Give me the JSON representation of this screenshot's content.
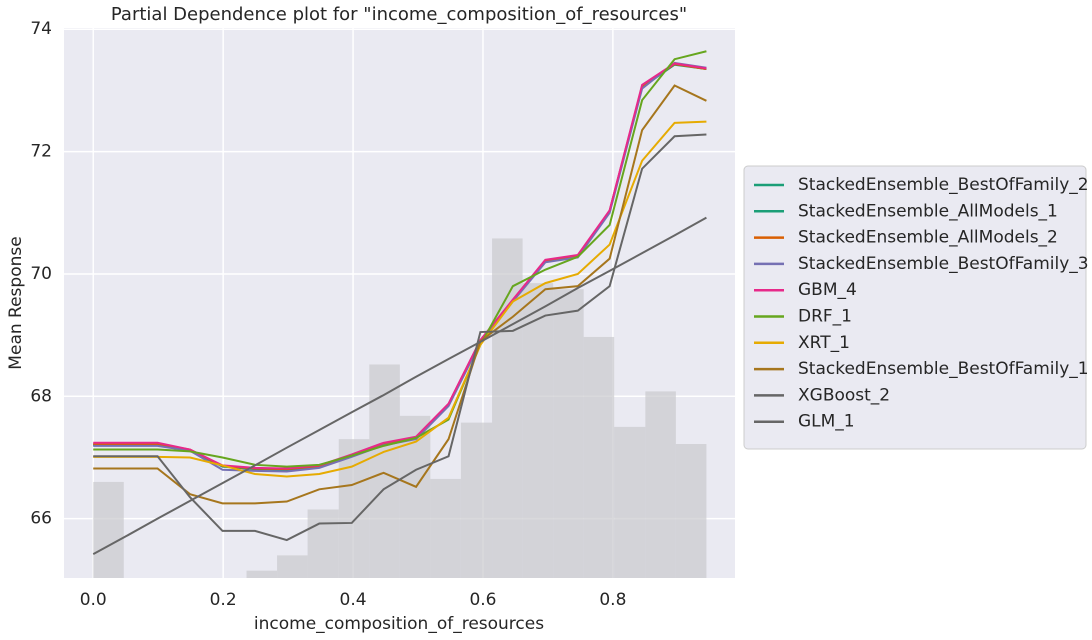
{
  "chart_data": {
    "type": "line",
    "title": "Partial Dependence plot for \"income_composition_of_resources\"",
    "x_label": "income_composition_of_resources",
    "y_label": "Mean Response",
    "x": [
      0,
      0.05,
      0.099,
      0.149,
      0.199,
      0.249,
      0.298,
      0.348,
      0.398,
      0.447,
      0.497,
      0.547,
      0.596,
      0.646,
      0.696,
      0.746,
      0.795,
      0.845,
      0.895,
      0.944
    ],
    "series": [
      {
        "name": "StackedEnsemble_BestOfFamily_2",
        "color": "#1b9e77",
        "values": [
          67.2,
          67.2,
          67.2,
          67.12,
          66.85,
          66.81,
          66.8,
          66.85,
          67.03,
          67.22,
          67.32,
          67.86,
          68.9,
          69.56,
          70.2,
          70.28,
          71.02,
          73.05,
          73.42,
          73.35
        ]
      },
      {
        "name": "StackedEnsemble_AllModels_1",
        "color": "#1b9e77",
        "values": [
          67.21,
          67.21,
          67.21,
          67.12,
          66.86,
          66.82,
          66.81,
          66.86,
          67.04,
          67.23,
          67.33,
          67.87,
          68.91,
          69.57,
          70.21,
          70.29,
          71.03,
          73.06,
          73.43,
          73.35
        ]
      },
      {
        "name": "StackedEnsemble_AllModels_2",
        "color": "#d95f02",
        "values": [
          67.22,
          67.22,
          67.22,
          67.13,
          66.86,
          66.82,
          66.81,
          66.86,
          67.04,
          67.23,
          67.33,
          67.87,
          68.91,
          69.57,
          70.22,
          70.3,
          71.03,
          73.07,
          73.43,
          73.35
        ]
      },
      {
        "name": "StackedEnsemble_BestOfFamily_3",
        "color": "#7570b3",
        "values": [
          67.19,
          67.19,
          67.19,
          67.11,
          66.8,
          66.78,
          66.77,
          66.83,
          67.01,
          67.2,
          67.3,
          67.84,
          68.88,
          69.55,
          70.19,
          70.27,
          71.0,
          73.03,
          73.45,
          73.37
        ]
      },
      {
        "name": "GBM_4",
        "color": "#e7298a",
        "values": [
          67.24,
          67.24,
          67.24,
          67.13,
          66.87,
          66.83,
          66.82,
          66.87,
          67.05,
          67.24,
          67.34,
          67.88,
          68.92,
          69.58,
          70.23,
          70.31,
          71.04,
          73.09,
          73.44,
          73.36
        ]
      },
      {
        "name": "DRF_1",
        "color": "#66a61e",
        "values": [
          67.13,
          67.13,
          67.13,
          67.1,
          67.0,
          66.88,
          66.85,
          66.88,
          67.03,
          67.19,
          67.32,
          67.62,
          68.84,
          69.8,
          70.07,
          70.28,
          70.8,
          72.84,
          73.51,
          73.64
        ]
      },
      {
        "name": "XRT_1",
        "color": "#e6ab02",
        "values": [
          67.01,
          67.01,
          67.01,
          67.0,
          66.87,
          66.73,
          66.69,
          66.73,
          66.85,
          67.09,
          67.26,
          67.65,
          68.84,
          69.55,
          69.85,
          70.0,
          70.48,
          71.85,
          72.47,
          72.49
        ]
      },
      {
        "name": "StackedEnsemble_BestOfFamily_1",
        "color": "#a6761d",
        "values": [
          66.82,
          66.82,
          66.82,
          66.4,
          66.25,
          66.25,
          66.28,
          66.48,
          66.55,
          66.75,
          66.52,
          67.3,
          68.9,
          69.3,
          69.75,
          69.8,
          70.25,
          72.35,
          73.08,
          72.83
        ]
      },
      {
        "name": "XGBoost_2",
        "color": "#666666",
        "values": [
          67.02,
          67.02,
          67.02,
          66.35,
          65.8,
          65.8,
          65.65,
          65.92,
          65.93,
          66.48,
          66.8,
          67.02,
          69.05,
          69.07,
          69.32,
          69.4,
          69.8,
          71.72,
          72.25,
          72.28
        ]
      },
      {
        "name": "GLM_1",
        "color": "#666666",
        "values": [
          65.42,
          65.71,
          66.0,
          66.29,
          66.58,
          66.87,
          67.16,
          67.45,
          67.74,
          68.02,
          68.32,
          68.61,
          68.89,
          69.18,
          69.47,
          69.77,
          70.05,
          70.34,
          70.63,
          70.92
        ]
      }
    ],
    "histogram": {
      "color": "#c9c9cd",
      "bins": [
        0,
        0.047,
        0.094,
        0.142,
        0.189,
        0.236,
        0.283,
        0.33,
        0.378,
        0.425,
        0.472,
        0.519,
        0.566,
        0.614,
        0.661,
        0.708,
        0.755,
        0.802,
        0.85,
        0.897,
        0.944
      ],
      "values": [
        66.6,
        null,
        null,
        null,
        null,
        65.15,
        65.4,
        66.15,
        67.3,
        68.52,
        67.68,
        66.65,
        67.57,
        70.58,
        69.85,
        69.75,
        68.97,
        67.5,
        68.08,
        67.22
      ]
    },
    "xlim": [
      -0.045,
      0.988
    ],
    "ylim": [
      65.03,
      74.02
    ],
    "xticks": [
      {
        "value": 0,
        "label": "0.0"
      },
      {
        "value": 0.2,
        "label": "0.2"
      },
      {
        "value": 0.4,
        "label": "0.4"
      },
      {
        "value": 0.6,
        "label": "0.6"
      },
      {
        "value": 0.8,
        "label": "0.8"
      }
    ],
    "yticks": [
      66,
      68,
      70,
      72,
      74
    ],
    "grid": true,
    "legend": "right"
  }
}
